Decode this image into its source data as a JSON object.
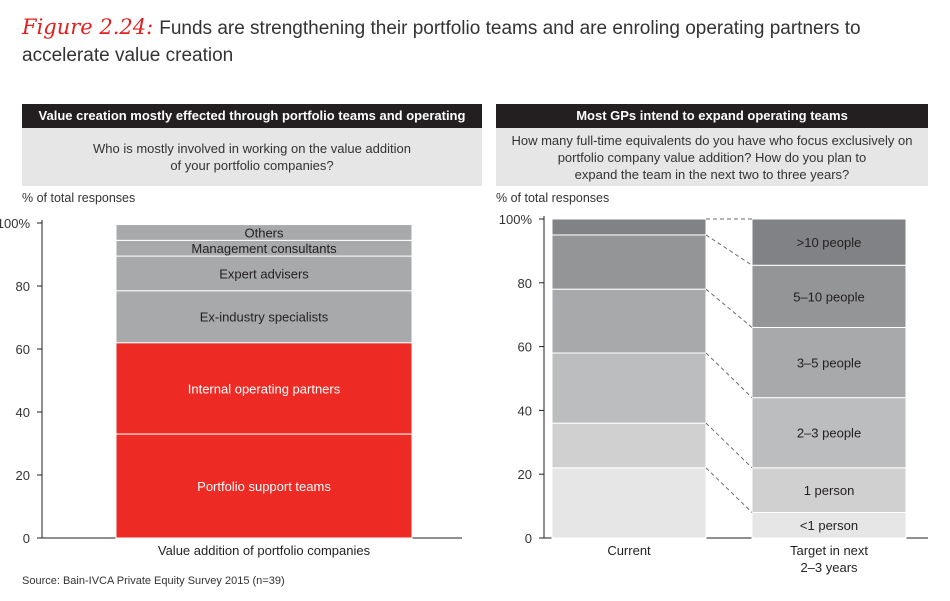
{
  "title": {
    "figure_label": "Figure 2.24:",
    "text": "Funds are strengthening their portfolio teams and are enroling operating partners to accelerate value creation"
  },
  "source": "Source: Bain-IVCA Private Equity Survey 2015 (n=39)",
  "left_panel": {
    "header": "Value creation mostly effected through portfolio teams and operating partners",
    "question_line1": "Who is mostly involved in working on the value addition",
    "question_line2": "of your portfolio companies?",
    "y_label": "% of total responses"
  },
  "right_panel": {
    "header": "Most GPs intend to expand operating teams",
    "question_line1": "How many full-time equivalents do you have who focus exclusively on",
    "question_line2": "portfolio company value addition? How do you plan to",
    "question_line3": "expand the team in the next two to three years?",
    "y_label": "% of total responses"
  },
  "colors": {
    "red": "#ee2a24",
    "grey_mid": "#a7a9ab",
    "grey_shades": [
      "#e6e6e6",
      "#d0d0d0",
      "#bcbdbf",
      "#a7a9ab",
      "#939597",
      "#808285"
    ]
  },
  "chart_data": [
    {
      "type": "bar",
      "stacked": true,
      "ylim": [
        0,
        100
      ],
      "yticks": [
        0,
        20,
        40,
        60,
        80,
        100
      ],
      "ytick_labels": [
        "0",
        "20",
        "40",
        "60",
        "80",
        "100%"
      ],
      "ylabel": "% of total responses",
      "categories": [
        "Value addition of portfolio companies"
      ],
      "series": [
        {
          "name": "Portfolio support teams",
          "values": [
            33
          ],
          "color": "#ee2a24"
        },
        {
          "name": "Internal operating partners",
          "values": [
            29
          ],
          "color": "#ee2a24"
        },
        {
          "name": "Ex-industry specialists",
          "values": [
            16.5
          ],
          "color": "#a7a9ab"
        },
        {
          "name": "Expert advisers",
          "values": [
            11
          ],
          "color": "#a7a9ab"
        },
        {
          "name": "Management consultants",
          "values": [
            5
          ],
          "color": "#a7a9ab"
        },
        {
          "name": "Others",
          "values": [
            5
          ],
          "color": "#a7a9ab"
        }
      ]
    },
    {
      "type": "bar",
      "stacked": true,
      "ylim": [
        0,
        100
      ],
      "yticks": [
        0,
        20,
        40,
        60,
        80,
        100
      ],
      "ytick_labels": [
        "0",
        "20",
        "40",
        "60",
        "80",
        "100%"
      ],
      "ylabel": "% of total responses",
      "categories": [
        "Current",
        "Target in next 2–3 years"
      ],
      "category_lines": [
        [
          "Current"
        ],
        [
          "Target in next",
          "2–3 years"
        ]
      ],
      "series": [
        {
          "name": "<1 person",
          "values": [
            22,
            8
          ],
          "color": "#e6e6e6"
        },
        {
          "name": "1 person",
          "values": [
            14,
            14
          ],
          "color": "#d0d0d0"
        },
        {
          "name": "2–3 people",
          "values": [
            22,
            22
          ],
          "color": "#bcbdbf"
        },
        {
          "name": "3–5 people",
          "values": [
            20,
            22
          ],
          "color": "#a7a9ab"
        },
        {
          "name": "5–10 people",
          "values": [
            17,
            19.5
          ],
          "color": "#939597"
        },
        {
          "name": ">10 people",
          "values": [
            5,
            14.5
          ],
          "color": "#808285"
        }
      ]
    }
  ]
}
